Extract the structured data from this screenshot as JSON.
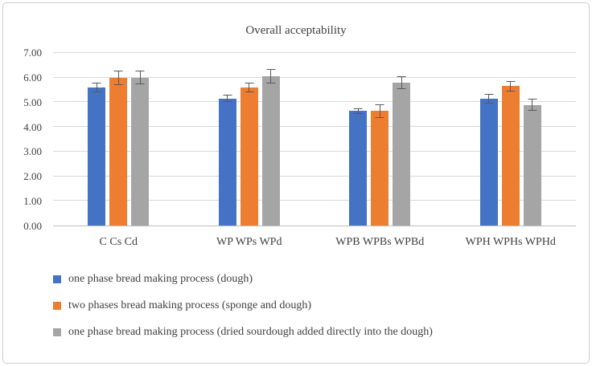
{
  "chart_data": {
    "type": "bar",
    "title": "Overall acceptability",
    "categories": [
      "C Cs Cd",
      "WP WPs WPd",
      "WPB WPBs WPBd",
      "WPH WPHs WPHd"
    ],
    "series": [
      {
        "name": "one phase bread making process (dough)",
        "color": "#4472C4",
        "values": [
          5.6,
          5.15,
          4.65,
          5.15
        ],
        "errors": [
          0.2,
          0.15,
          0.12,
          0.2
        ]
      },
      {
        "name": "two phases bread making process (sponge and dough)",
        "color": "#ED7D31",
        "values": [
          6.0,
          5.6,
          4.65,
          5.65
        ],
        "errors": [
          0.3,
          0.2,
          0.28,
          0.22
        ]
      },
      {
        "name": "one phase bread making process (dried sourdough added directly into the dough)",
        "color": "#A5A5A5",
        "values": [
          6.0,
          6.05,
          5.8,
          4.9
        ],
        "errors": [
          0.28,
          0.3,
          0.25,
          0.25
        ]
      }
    ],
    "ylim": [
      0,
      7
    ],
    "ytick_step": 1,
    "ytick_labels": [
      "0.00",
      "1.00",
      "2.00",
      "3.00",
      "4.00",
      "5.00",
      "6.00",
      "7.00"
    ],
    "grid": true,
    "legend_position": "bottom",
    "error_bar_color": "#595959"
  }
}
